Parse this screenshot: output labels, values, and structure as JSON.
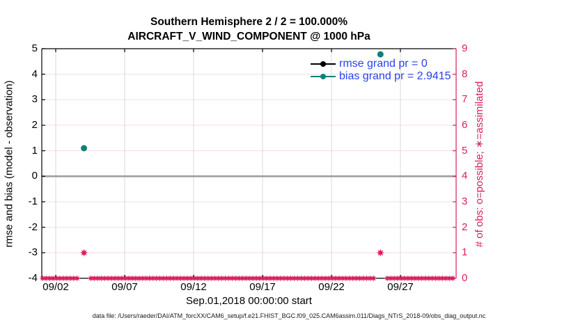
{
  "title": {
    "line1": "Southern Hemisphere 2 / 2 = 100.000%",
    "line2": "AIRCRAFT_V_WIND_COMPONENT @ 1000 hPa"
  },
  "axes": {
    "left_label": "rmse and bias (model - observation)",
    "right_label": "# of obs: o=possible; ∗=assimilated",
    "x_label": "Sep.01,2018 00:00:00 start"
  },
  "legend": {
    "items": [
      {
        "label": "rmse grand pr = 0",
        "line_color": "#000000"
      },
      {
        "label": "bias grand pr = 2.9415",
        "line_color": "#108078"
      }
    ],
    "text_color": "#2742ee"
  },
  "footer": "data file: /Users/raeder/DAI/ATM_forcXX/CAM6_setup/f.e21.FHIST_BGC.f09_025.CAM6assim.011/Diags_NTrS_2018-09/obs_diag_output.nc",
  "colors": {
    "count_pink": "#d81e5f",
    "gridline_pink": "#f6dbe4",
    "gridline_gray": "#d8d8d8",
    "zero_line_gray": "#9b9b9b",
    "bias_teal": "#108078",
    "rmse_black": "#000000",
    "legend_blue": "#2742ee",
    "axis_black": "#000000"
  },
  "chart_data": {
    "type": "line",
    "title": "Southern Hemisphere 2 / 2 = 100.000% | AIRCRAFT_V_WIND_COMPONENT @ 1000 hPa",
    "x_axis": {
      "tick_labels": [
        "09/02",
        "09/07",
        "09/12",
        "09/17",
        "09/22",
        "09/27"
      ],
      "tick_days": [
        1,
        6,
        11,
        16,
        21,
        26
      ],
      "range_days": [
        0,
        30.05
      ],
      "label": "Sep.01,2018 00:00:00 start"
    },
    "left_axis": {
      "label": "rmse and bias (model - observation)",
      "min": -4,
      "max": 5,
      "tick_step": 1
    },
    "right_axis": {
      "label": "# of obs: o=possible; ∗=assimilated",
      "min": 0,
      "max": 9,
      "tick_step": 1
    },
    "zero_line": {
      "value": 0
    },
    "series": [
      {
        "name": "rmse grand pr = 0",
        "color": "#000000",
        "marker": "circle",
        "points": []
      },
      {
        "name": "bias grand pr = 2.9415",
        "color": "#108078",
        "marker": "circle",
        "points": [
          {
            "day": 3.05,
            "value": 1.1
          },
          {
            "day": 24.55,
            "value": 4.78
          }
        ]
      }
    ],
    "obs_counts": {
      "color": "#d81e5f",
      "marker": "star",
      "nonzero_points": [
        {
          "day": 3.05,
          "count": 1
        },
        {
          "day": 24.55,
          "count": 1
        }
      ],
      "zero_band": {
        "start_day": 0.05,
        "end_day": 29.85,
        "step_days": 0.25,
        "count": 0,
        "gap_days": [
          3.05,
          24.55
        ]
      }
    }
  }
}
